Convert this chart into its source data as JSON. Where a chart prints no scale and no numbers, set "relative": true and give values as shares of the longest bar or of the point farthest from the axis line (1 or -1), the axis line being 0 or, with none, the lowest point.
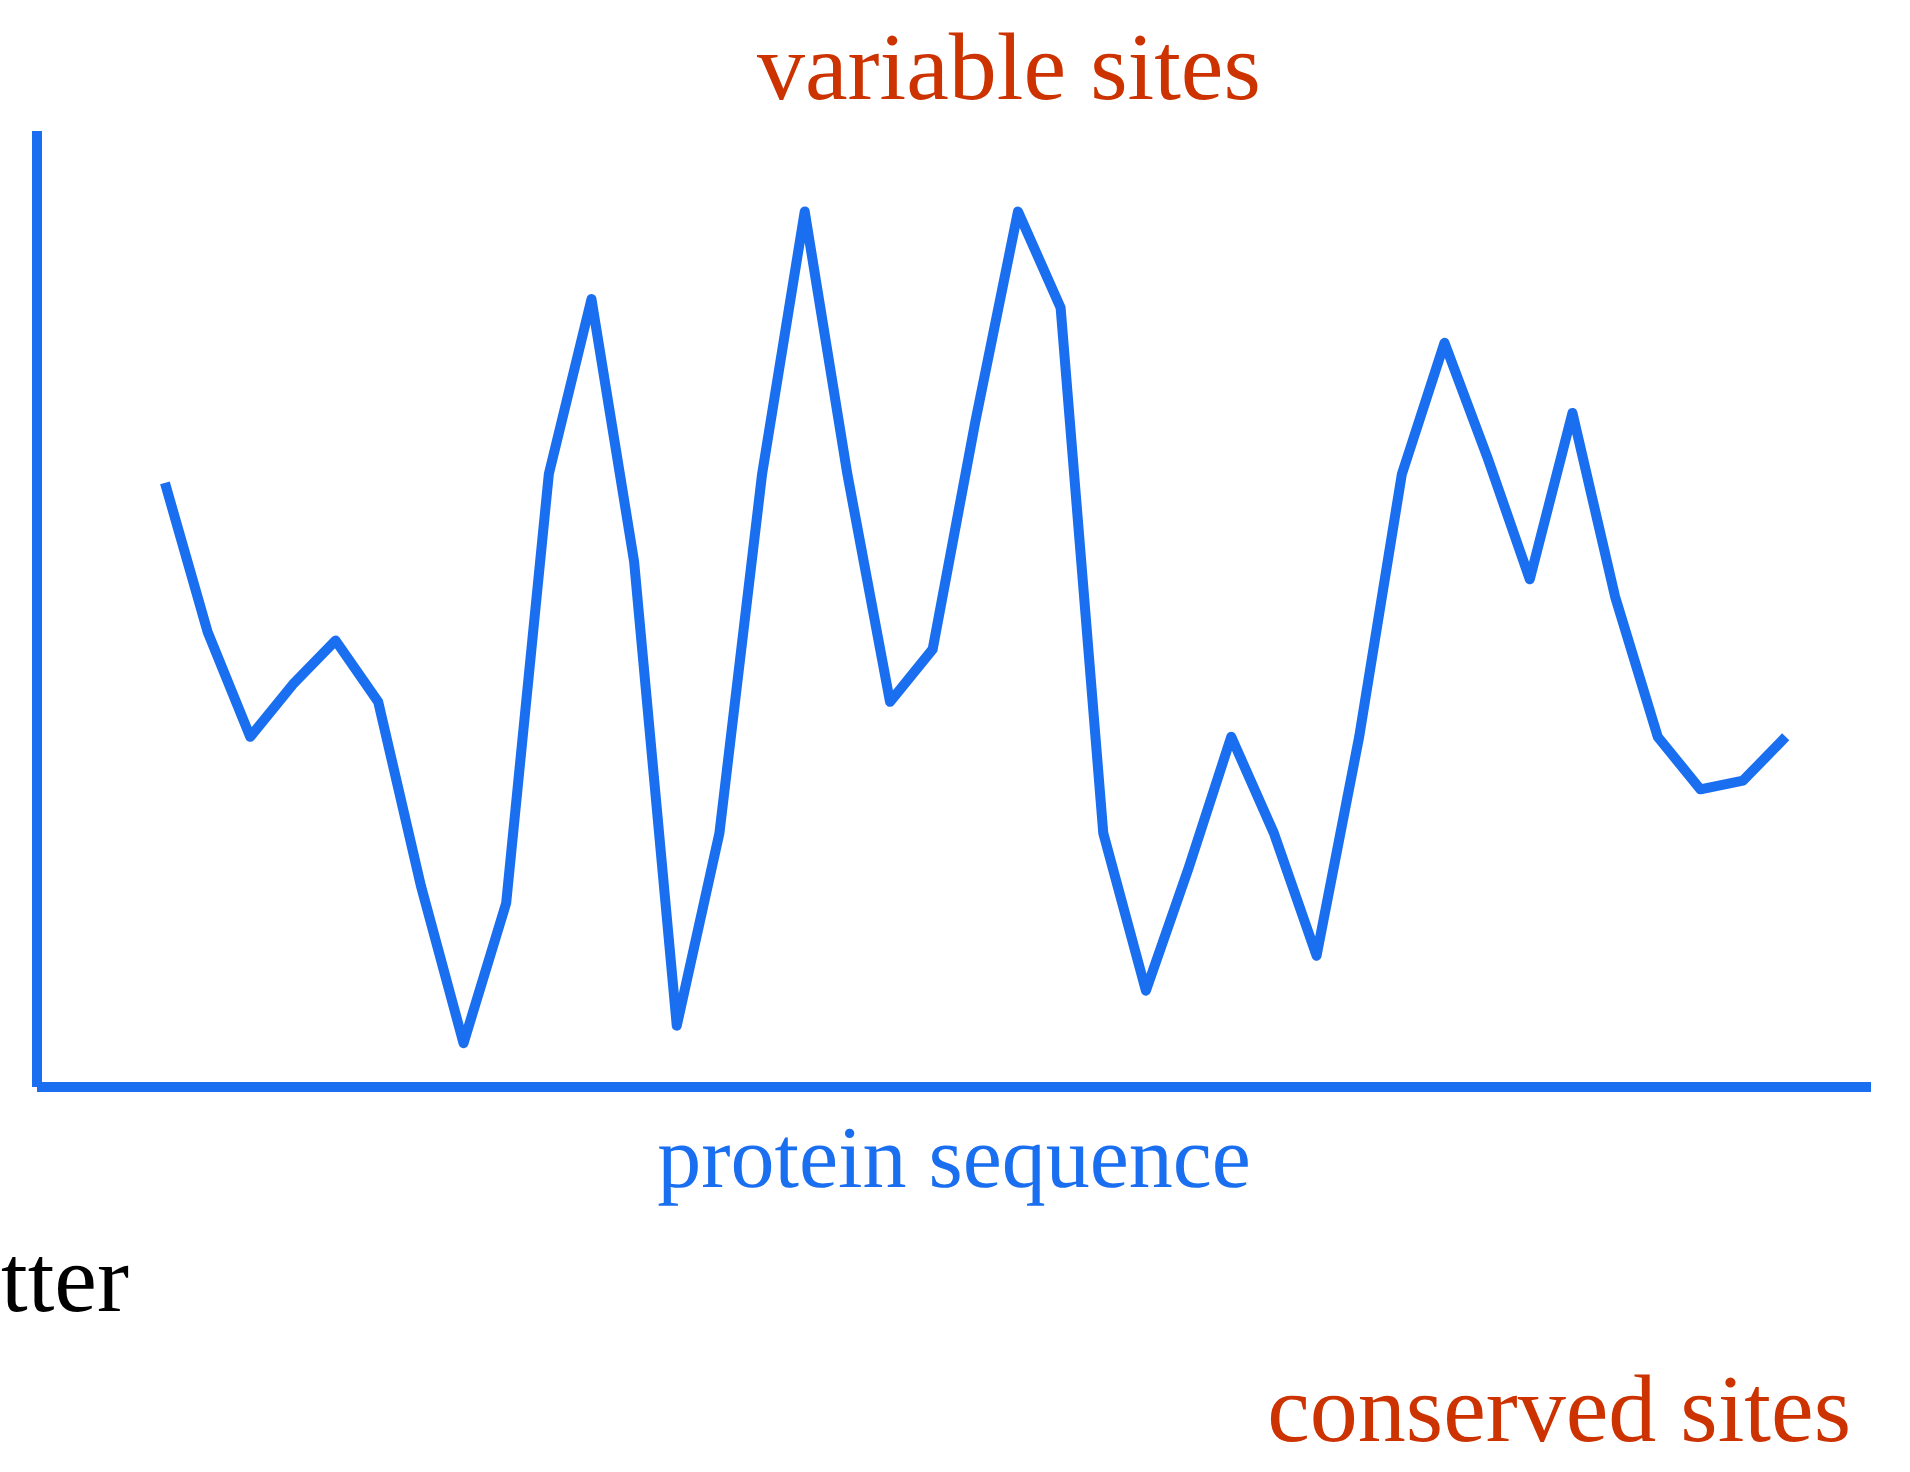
{
  "chart_data": {
    "type": "line",
    "relative": true,
    "xlabel": "protein sequence",
    "tick_labels": false,
    "grid": false,
    "marker": "none",
    "line_style": "solid",
    "categories": [
      null,
      null,
      null,
      null,
      null,
      null,
      null,
      null,
      null,
      null,
      null,
      null,
      null,
      null,
      null,
      null,
      null,
      null,
      null,
      null,
      null,
      null,
      null,
      null,
      null,
      null,
      null,
      null,
      null,
      null,
      null,
      null,
      null,
      null,
      null,
      null,
      null,
      null,
      null
    ],
    "series": [
      {
        "color": "#1a6ff0",
        "values": [
          0.69,
          0.52,
          0.4,
          0.46,
          0.51,
          0.44,
          0.23,
          0.05,
          0.21,
          0.7,
          0.9,
          0.6,
          0.07,
          0.29,
          0.7,
          1.0,
          0.7,
          0.44,
          0.5,
          0.76,
          1.0,
          0.89,
          0.29,
          0.11,
          0.25,
          0.4,
          0.29,
          0.15,
          0.4,
          0.7,
          0.85,
          0.72,
          0.58,
          0.77,
          0.56,
          0.4,
          0.34,
          0.35,
          0.4
        ]
      }
    ],
    "annotations": [
      "variable sites",
      "tter",
      "conserved sites"
    ]
  }
}
